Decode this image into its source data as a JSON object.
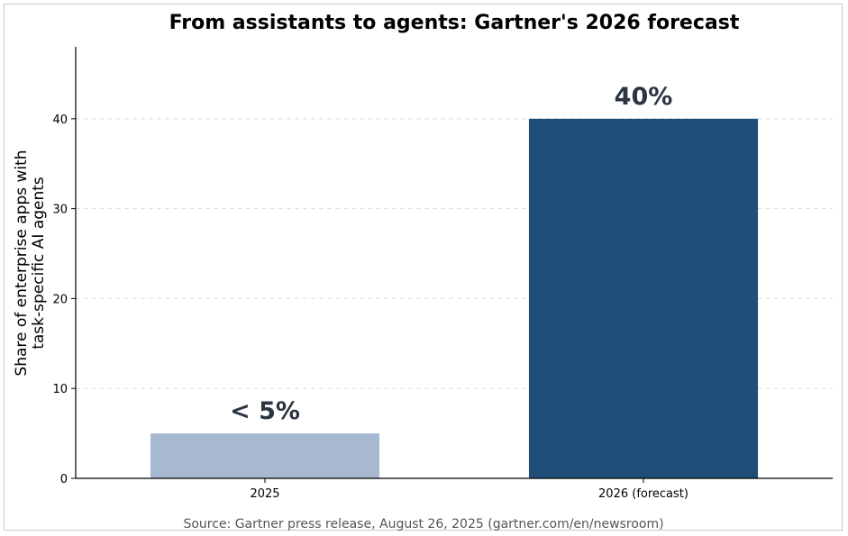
{
  "chart_data": {
    "type": "bar",
    "title": "From assistants to agents: Gartner's 2026 forecast",
    "ylabel_lines": [
      "Share of enterprise apps with",
      "task-specific AI agents"
    ],
    "xlabel": "",
    "categories": [
      "2025",
      "2026 (forecast)"
    ],
    "values": [
      5,
      40
    ],
    "data_labels": [
      "< 5%",
      "40%"
    ],
    "bar_colors": [
      "#a7b9d1",
      "#1f4e79"
    ],
    "label_color": "#2b3440",
    "ylim": [
      0,
      48
    ],
    "yticks": [
      0,
      10,
      20,
      30,
      40
    ],
    "grid": true,
    "source": "Source: Gartner press release, August 26, 2025 (gartner.com/en/newsroom)"
  }
}
